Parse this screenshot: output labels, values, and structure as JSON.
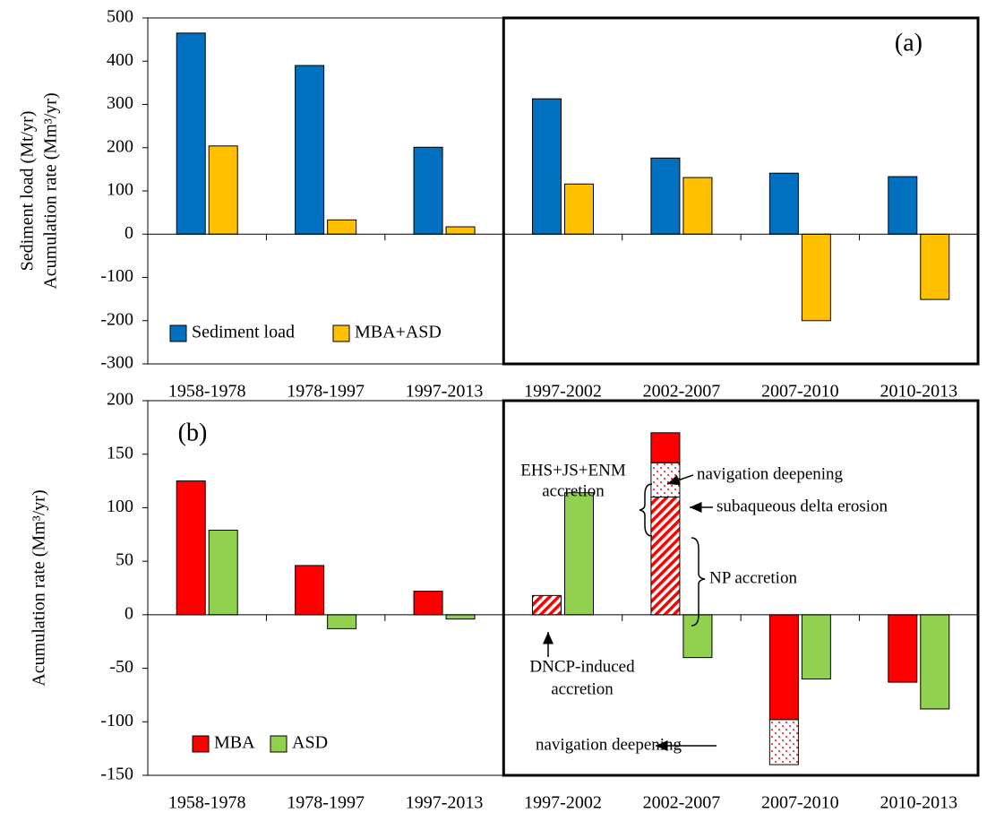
{
  "chart_data": [
    {
      "type": "bar",
      "panel_label": "(a)",
      "ylabel": [
        "Sediment load (Mt/yr)",
        "Acumulation rate (Mm³/yr)"
      ],
      "categories": [
        "1958-1978",
        "1978-1997",
        "1997-2013",
        "1997-2002",
        "2002-2007",
        "2007-2010",
        "2010-2013"
      ],
      "series": [
        {
          "name": "Sediment load",
          "color": "#0070c0",
          "values": [
            465,
            390,
            201,
            313,
            176,
            141,
            133
          ]
        },
        {
          "name": "MBA+ASD",
          "color": "#ffc000",
          "values": [
            204,
            33,
            17,
            116,
            131,
            -200,
            -151
          ]
        }
      ],
      "ylim": [
        -300,
        500
      ],
      "yticks": [
        -300,
        -200,
        -100,
        0,
        100,
        200,
        300,
        400,
        500
      ]
    },
    {
      "type": "bar",
      "panel_label": "(b)",
      "ylabel": [
        "Acumulation rate (Mm³/yr)"
      ],
      "categories": [
        "1958-1978",
        "1978-1997",
        "1997-2013",
        "1997-2002",
        "2002-2007",
        "2007-2010",
        "2010-2013"
      ],
      "series": [
        {
          "name": "MBA",
          "color": "#ff0000",
          "values": [
            [
              125
            ],
            [
              46
            ],
            [
              22
            ],
            [
              18
            ],
            [
              110,
              32,
              28
            ],
            [
              -98,
              -42
            ],
            [
              -63
            ]
          ],
          "patterns": [
            [
              "solid"
            ],
            [
              "solid"
            ],
            [
              "solid"
            ],
            [
              "hatch"
            ],
            [
              "hatch",
              "dots",
              "solid"
            ],
            [
              "solid",
              "dots"
            ],
            [
              "solid"
            ]
          ]
        },
        {
          "name": "ASD",
          "color": "#92d050",
          "values": [
            79,
            -13,
            -4,
            114,
            -40,
            -60,
            -88
          ]
        }
      ],
      "ylim": [
        -150,
        200
      ],
      "yticks": [
        -150,
        -100,
        -50,
        0,
        50,
        100,
        150,
        200
      ],
      "annotations": [
        "EHS+JS+ENM",
        "accretion",
        "navigation deepening",
        "subaqueous delta erosion",
        "NP accretion",
        "DNCP-induced",
        "accretion",
        "navigation deepening"
      ]
    }
  ]
}
